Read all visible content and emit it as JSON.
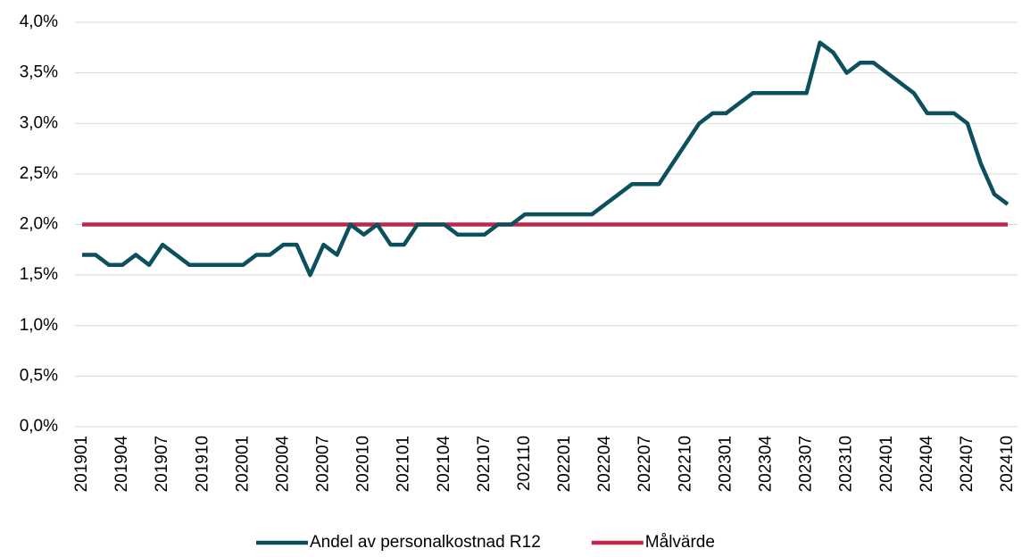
{
  "chart_data": {
    "type": "line",
    "categories": [
      "201901",
      null,
      null,
      "201904",
      null,
      null,
      "201907",
      null,
      null,
      "201910",
      null,
      null,
      "202001",
      null,
      null,
      "202004",
      null,
      null,
      "202007",
      null,
      null,
      "202010",
      null,
      null,
      "202101",
      null,
      null,
      "202104",
      null,
      null,
      "202107",
      null,
      null,
      "202110",
      null,
      null,
      "202201",
      null,
      null,
      "202204",
      null,
      null,
      "202207",
      null,
      null,
      "202210",
      null,
      null,
      "202301",
      null,
      null,
      "202304",
      null,
      null,
      "202307",
      null,
      null,
      "202310",
      null,
      null,
      "202401",
      null,
      null,
      "202404",
      null,
      null,
      "202407",
      null,
      null,
      "202410"
    ],
    "series": [
      {
        "name": "Andel av personalkostnad R12",
        "color": "#0c4f5d",
        "values": [
          1.7,
          1.7,
          1.6,
          1.6,
          1.7,
          1.6,
          1.8,
          1.7,
          1.6,
          1.6,
          1.6,
          1.6,
          1.6,
          1.7,
          1.7,
          1.8,
          1.8,
          1.5,
          1.8,
          1.7,
          2.0,
          1.9,
          2.0,
          1.8,
          1.8,
          2.0,
          2.0,
          2.0,
          1.9,
          1.9,
          1.9,
          2.0,
          2.0,
          2.1,
          2.1,
          2.1,
          2.1,
          2.1,
          2.1,
          2.2,
          2.3,
          2.4,
          2.4,
          2.4,
          2.6,
          2.8,
          3.0,
          3.1,
          3.1,
          3.2,
          3.3,
          3.3,
          3.3,
          3.3,
          3.3,
          3.8,
          3.7,
          3.5,
          3.6,
          3.6,
          3.5,
          3.4,
          3.3,
          3.1,
          3.1,
          3.1,
          3.0,
          2.6,
          2.3,
          2.2
        ]
      },
      {
        "name": "Målvärde",
        "color": "#c0264a",
        "values": [
          2.0,
          2.0,
          2.0,
          2.0,
          2.0,
          2.0,
          2.0,
          2.0,
          2.0,
          2.0,
          2.0,
          2.0,
          2.0,
          2.0,
          2.0,
          2.0,
          2.0,
          2.0,
          2.0,
          2.0,
          2.0,
          2.0,
          2.0,
          2.0,
          2.0,
          2.0,
          2.0,
          2.0,
          2.0,
          2.0,
          2.0,
          2.0,
          2.0,
          2.0,
          2.0,
          2.0,
          2.0,
          2.0,
          2.0,
          2.0,
          2.0,
          2.0,
          2.0,
          2.0,
          2.0,
          2.0,
          2.0,
          2.0,
          2.0,
          2.0,
          2.0,
          2.0,
          2.0,
          2.0,
          2.0,
          2.0,
          2.0,
          2.0,
          2.0,
          2.0,
          2.0,
          2.0,
          2.0,
          2.0,
          2.0,
          2.0,
          2.0,
          2.0,
          2.0,
          2.0
        ]
      }
    ],
    "ylim": [
      0,
      4.0
    ],
    "yticks": [
      {
        "value": 0,
        "label": "0,0%"
      },
      {
        "value": 0.5,
        "label": "0,5%"
      },
      {
        "value": 1.0,
        "label": "1,0%"
      },
      {
        "value": 1.5,
        "label": "1,5%"
      },
      {
        "value": 2.0,
        "label": "2,0%"
      },
      {
        "value": 2.5,
        "label": "2,5%"
      },
      {
        "value": 3.0,
        "label": "3,0%"
      },
      {
        "value": 3.5,
        "label": "3,5%"
      },
      {
        "value": 4.0,
        "label": "4,0%"
      }
    ],
    "grid": true,
    "legend": "bottom"
  }
}
